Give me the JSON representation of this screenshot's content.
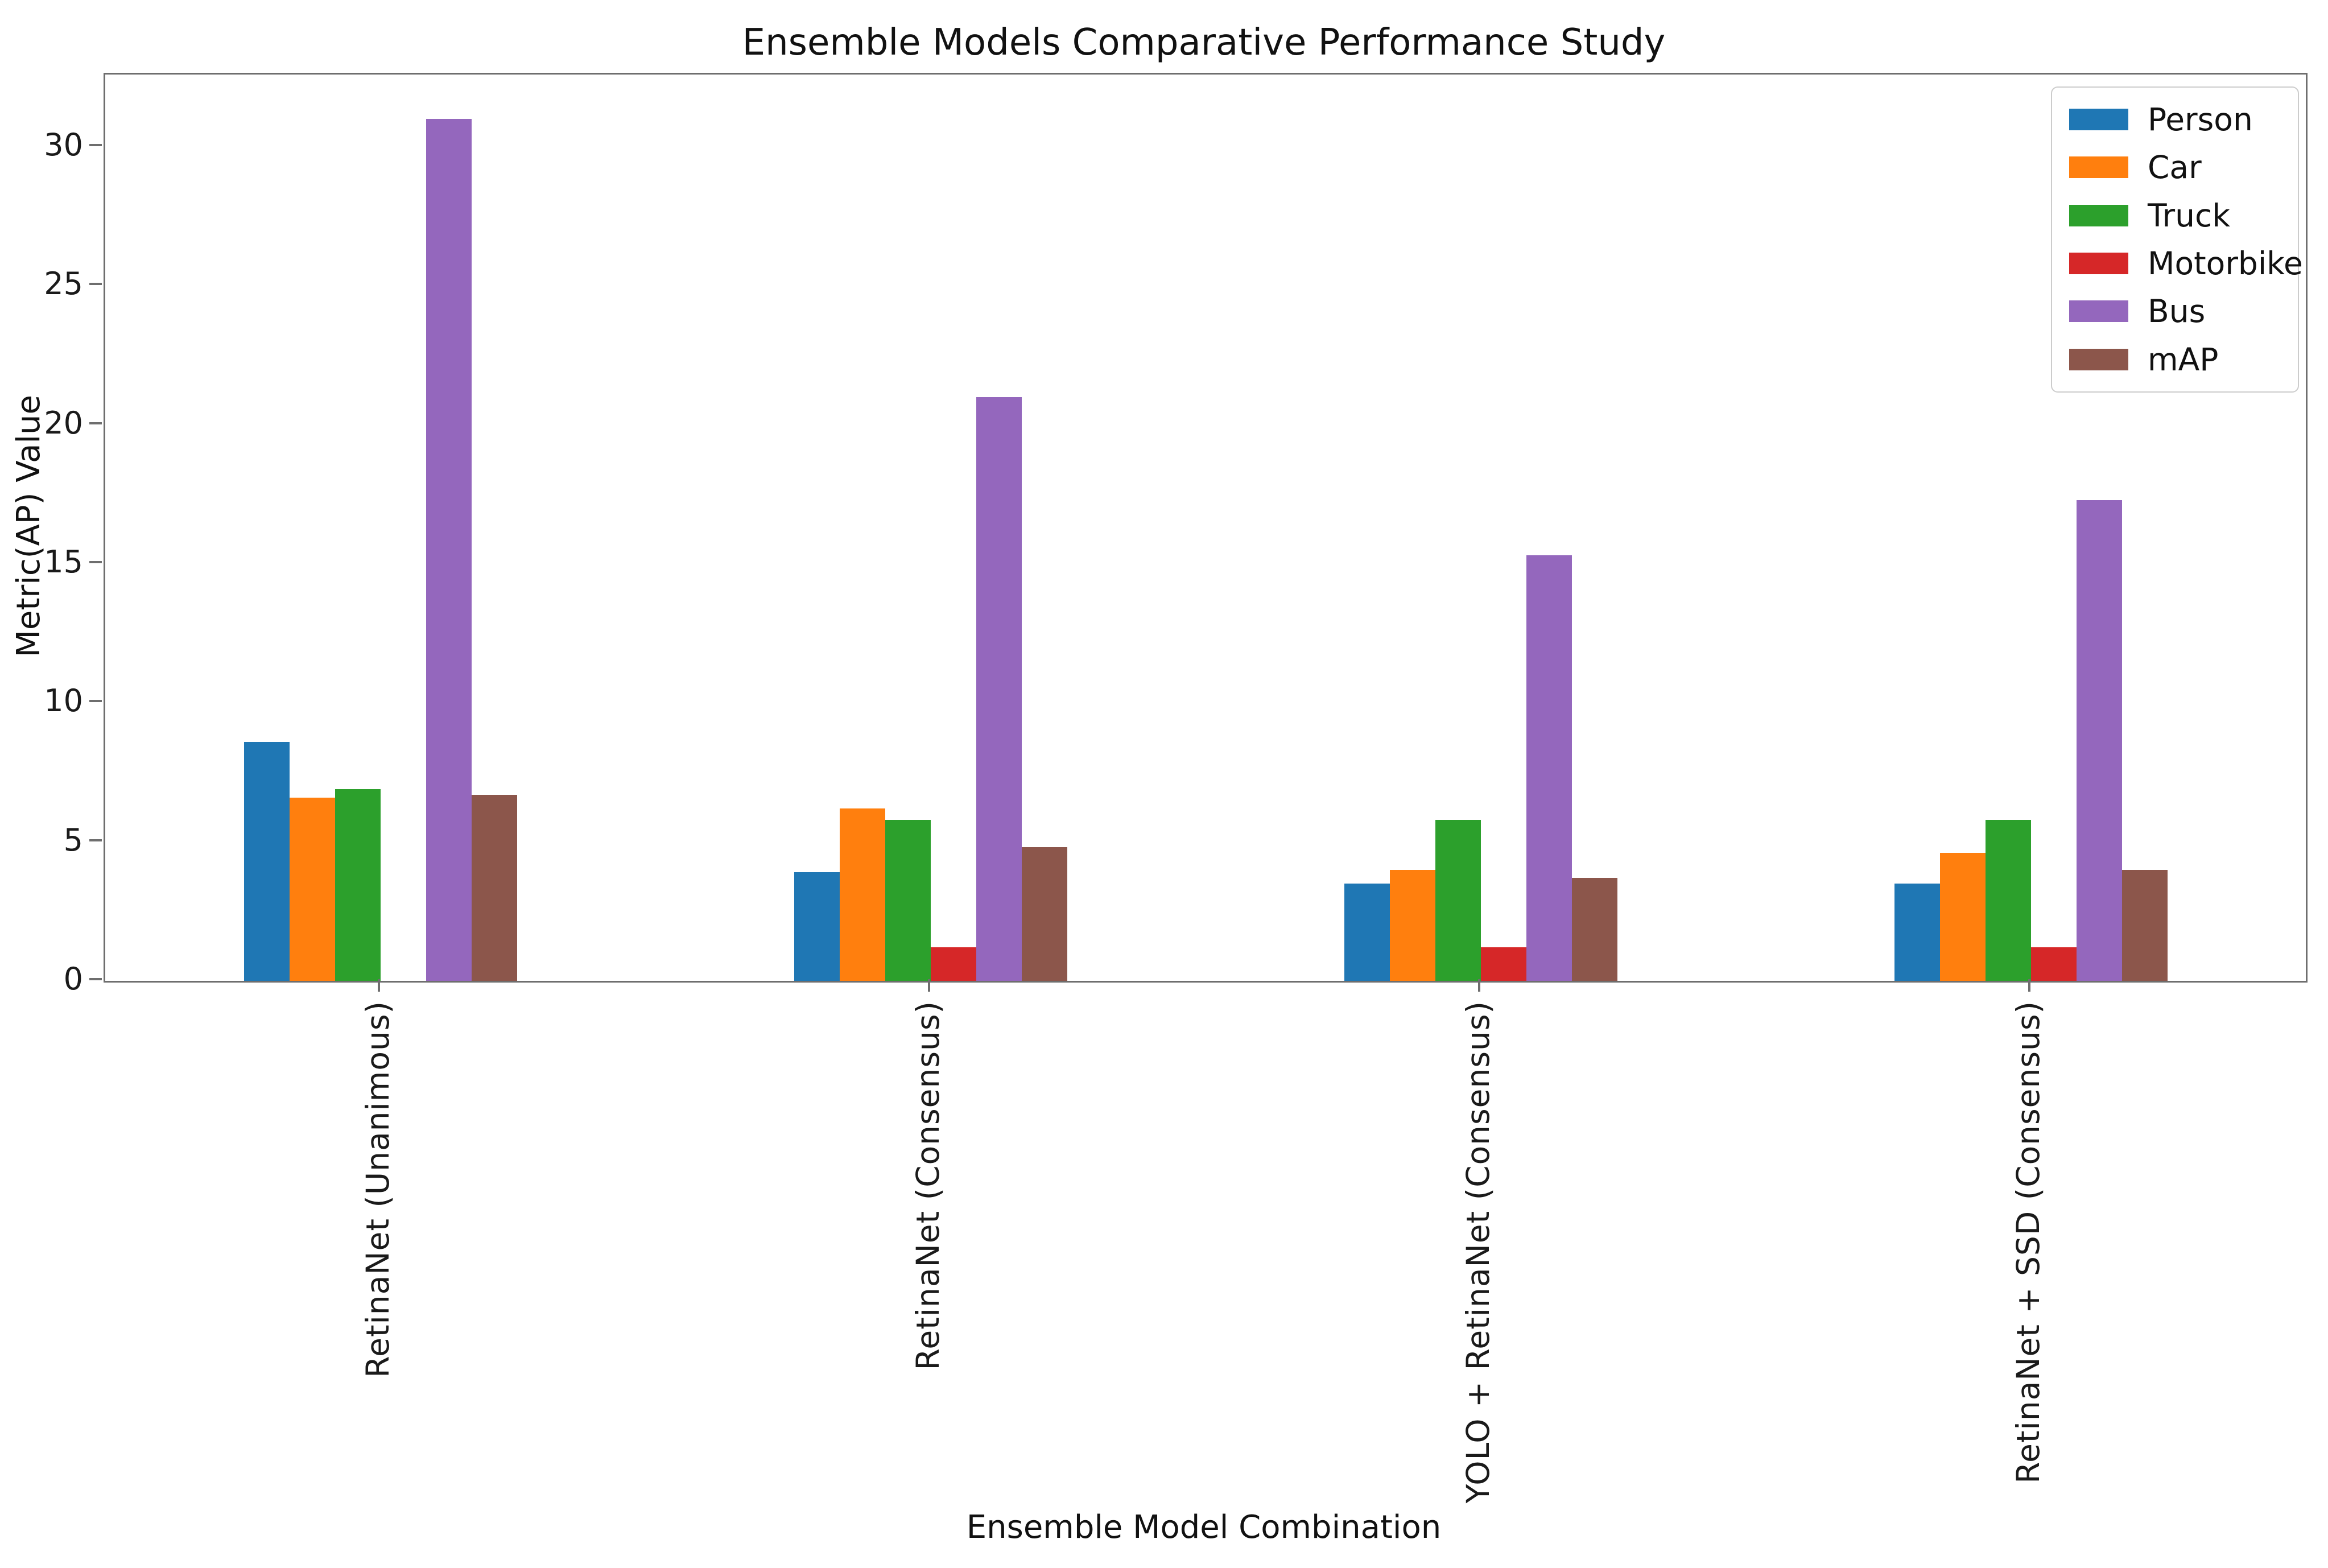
{
  "title": "Ensemble Models Comparative Performance Study",
  "x_axis_label": "Ensemble Model Combination",
  "y_axis_label": "Metric(AP) Value",
  "legend": {
    "position": "upper-right",
    "entries": [
      "Person",
      "Car",
      "Truck",
      "Motorbike",
      "Bus",
      "mAP"
    ]
  },
  "colors": {
    "person": "#1f77b4",
    "car": "#ff7f0e",
    "truck": "#2ca02c",
    "motorbike": "#d62728",
    "bus": "#9467bd",
    "map": "#8c564b",
    "spine": "#6e6e6e",
    "text": "#1a1a1a"
  },
  "chart_data": {
    "type": "bar",
    "title": "Ensemble Models Comparative Performance Study",
    "xlabel": "Ensemble Model Combination",
    "ylabel": "Metric(AP) Value",
    "ylim": [
      0,
      32.6
    ],
    "yticks": [
      0,
      5,
      10,
      15,
      20,
      25,
      30
    ],
    "grid": false,
    "legend_position": "upper right",
    "x_tick_rotation_deg": 90,
    "categories": [
      "RetinaNet (Unanimous)",
      "RetinaNet (Consensus)",
      "YOLO + RetinaNet (Consensus)",
      "RetinaNet + SSD (Consensus)"
    ],
    "series": [
      {
        "name": "Person",
        "color": "#1f77b4",
        "values": [
          8.6,
          3.9,
          3.5,
          3.5
        ]
      },
      {
        "name": "Car",
        "color": "#ff7f0e",
        "values": [
          6.6,
          6.2,
          4.0,
          4.6
        ]
      },
      {
        "name": "Truck",
        "color": "#2ca02c",
        "values": [
          6.9,
          5.8,
          5.8,
          5.8
        ]
      },
      {
        "name": "Motorbike",
        "color": "#d62728",
        "values": [
          0.0,
          1.2,
          1.2,
          1.2
        ]
      },
      {
        "name": "Bus",
        "color": "#9467bd",
        "values": [
          31.0,
          21.0,
          15.3,
          17.3
        ]
      },
      {
        "name": "mAP",
        "color": "#8c564b",
        "values": [
          6.7,
          4.8,
          3.7,
          4.0
        ]
      }
    ]
  }
}
